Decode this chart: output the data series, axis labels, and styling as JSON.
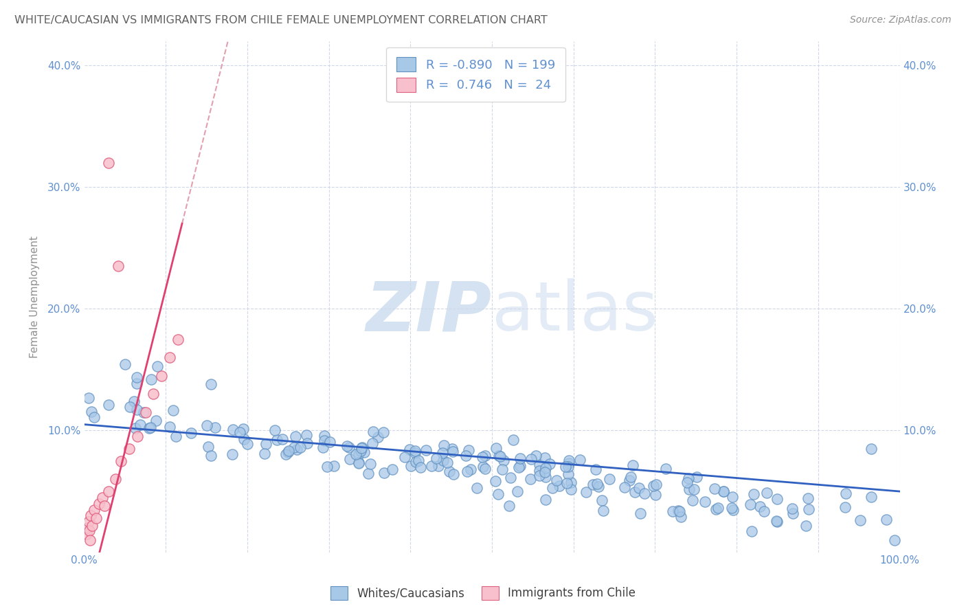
{
  "title": "WHITE/CAUCASIAN VS IMMIGRANTS FROM CHILE FEMALE UNEMPLOYMENT CORRELATION CHART",
  "source": "Source: ZipAtlas.com",
  "ylabel": "Female Unemployment",
  "xlabel": "",
  "xlim": [
    0,
    1.0
  ],
  "ylim": [
    0,
    0.42
  ],
  "xticks": [
    0.0,
    0.1,
    0.2,
    0.3,
    0.4,
    0.5,
    0.6,
    0.7,
    0.8,
    0.9,
    1.0
  ],
  "xticklabels": [
    "0.0%",
    "",
    "",
    "",
    "",
    "",
    "",
    "",
    "",
    "",
    "100.0%"
  ],
  "yticks": [
    0.0,
    0.1,
    0.2,
    0.3,
    0.4
  ],
  "yticklabels": [
    "",
    "10.0%",
    "20.0%",
    "30.0%",
    "40.0%"
  ],
  "blue_R": "-0.890",
  "blue_N": "199",
  "pink_R": "0.746",
  "pink_N": "24",
  "blue_color": "#a8c8e8",
  "blue_edge_color": "#6090c0",
  "pink_color": "#f8c0cc",
  "pink_edge_color": "#e06080",
  "blue_line_color": "#3060c0",
  "pink_line_color": "#e04070",
  "pink_dash_color": "#e0a0b0",
  "watermark_color": "#d0dff0",
  "legend_label_blue": "Whites/Caucasians",
  "legend_label_pink": "Immigrants from Chile",
  "title_color": "#606060",
  "axis_color": "#6090d0",
  "grid_color": "#d0d8e8",
  "background_color": "#ffffff"
}
